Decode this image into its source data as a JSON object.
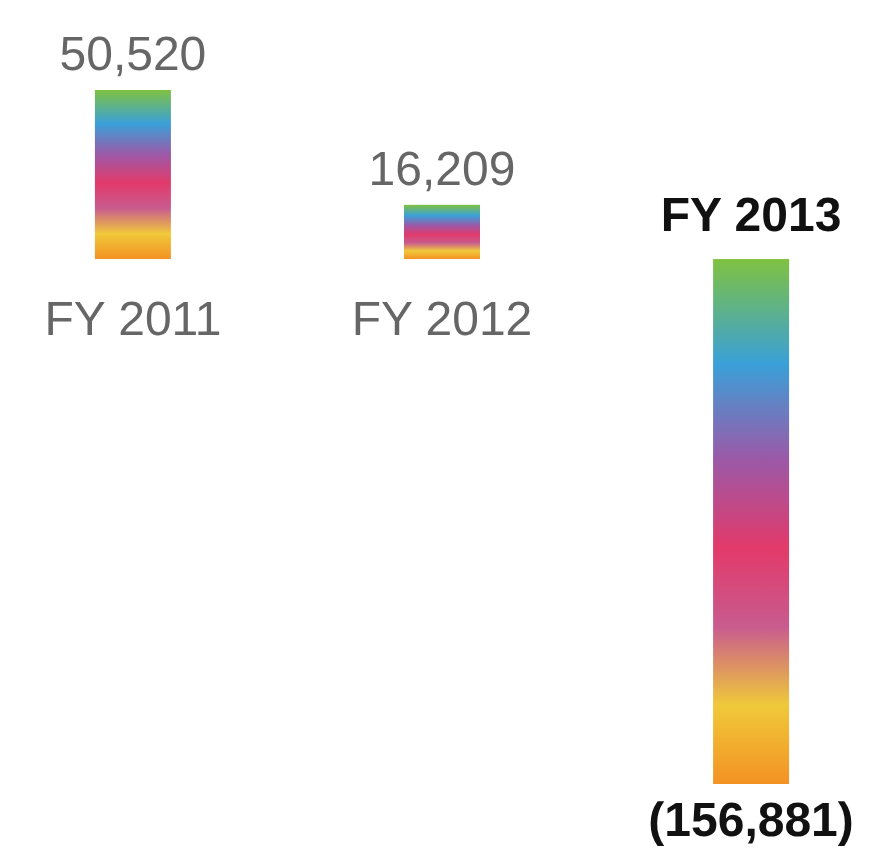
{
  "chart_data": {
    "type": "bar",
    "categories": [
      "FY 2011",
      "FY 2012",
      "FY 2013"
    ],
    "values": [
      50520,
      16209,
      -156881
    ],
    "value_labels": [
      "50,520",
      "16,209",
      "(156,881)"
    ],
    "tick_labels": "x"
  }
}
